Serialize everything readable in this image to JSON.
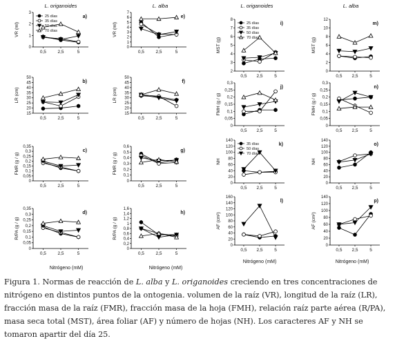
{
  "x_values": [
    "0,5",
    "2,5",
    "5"
  ],
  "headers": [
    {
      "prefix": "L. ",
      "name": "origanoides"
    },
    {
      "prefix": "L. ",
      "name": "alba"
    },
    {
      "prefix": "L. ",
      "name": "origanoides"
    },
    {
      "prefix": "L. ",
      "name": "alba"
    }
  ],
  "xlabels": [
    "Nitrógeno (mM)",
    "Nitrógeno (mM)",
    "Nitrógeno (mM)",
    "Nitrógeno (mM)"
  ],
  "caption": {
    "p1": "Figura 1. Normas de reacción de ",
    "e1": "L. alba",
    "p2": " y ",
    "e2": "L. origanoides",
    "p3": " creciendo en tres concentraciones de nitrógeno en distintos puntos de la ontogenia. volumen de la raíz (VR), longitud de la raíz (LR), fracción masa de la raíz (FMR), fracción masa de la hoja (FMH), relación raíz parte aérea (R/PA), masa seca total (MST), área foliar (AF) y número de hojas (NH). Los caracteres AF y NH se tomaron apartir del día 25."
  },
  "chart_data": [
    {
      "id": "a",
      "type": "line",
      "ylabel": "VR (ml)",
      "ylim": [
        0,
        3
      ],
      "yticks": [
        0,
        1,
        2,
        3
      ],
      "legend": true,
      "series": [
        {
          "name": "25 días",
          "marker": "filled-circle",
          "values": [
            0.9,
            0.6,
            0.4
          ]
        },
        {
          "name": "35 días",
          "marker": "open-circle",
          "values": [
            0.85,
            0.7,
            0.45
          ]
        },
        {
          "name": "50 días",
          "marker": "filled-triangle-down",
          "values": [
            0.85,
            0.65,
            0.95
          ]
        },
        {
          "name": "70 días",
          "marker": "open-triangle-up",
          "values": [
            1.7,
            2.0,
            1.3
          ]
        }
      ]
    },
    {
      "id": "e",
      "type": "line",
      "ylabel": "VR (ml)",
      "ylim": [
        0,
        7
      ],
      "yticks": [
        0,
        1,
        2,
        3,
        4,
        5,
        6,
        7
      ],
      "series": [
        {
          "name": "25 días",
          "marker": "filled-circle",
          "values": [
            5.0,
            2.0,
            2.6
          ]
        },
        {
          "name": "35 días",
          "marker": "open-circle",
          "values": [
            4.6,
            2.6,
            2.5
          ]
        },
        {
          "name": "50 días",
          "marker": "filled-triangle-down",
          "values": [
            3.7,
            2.5,
            3.1
          ]
        },
        {
          "name": "70 días",
          "marker": "open-triangle-up",
          "values": [
            5.7,
            5.7,
            6.0
          ]
        }
      ]
    },
    {
      "id": "b",
      "type": "line",
      "ylabel": "LR (cm)",
      "ylim": [
        15,
        50
      ],
      "yticks": [
        15,
        20,
        25,
        30,
        35,
        40,
        45,
        50
      ],
      "series": [
        {
          "name": "25 días",
          "marker": "filled-circle",
          "values": [
            19.5,
            20,
            22
          ]
        },
        {
          "name": "35 días",
          "marker": "open-circle",
          "values": [
            26,
            22,
            31
          ]
        },
        {
          "name": "50 días",
          "marker": "filled-triangle-down",
          "values": [
            26,
            25.5,
            33
          ]
        },
        {
          "name": "70 días",
          "marker": "open-triangle-up",
          "values": [
            30,
            34,
            38.5
          ]
        }
      ]
    },
    {
      "id": "f",
      "type": "line",
      "ylabel": "LR (cm)",
      "ylim": [
        15,
        50
      ],
      "yticks": [
        15,
        20,
        25,
        30,
        35,
        40,
        45,
        50
      ],
      "series": [
        {
          "name": "25 días",
          "marker": "filled-circle",
          "values": [
            32,
            31,
            28
          ]
        },
        {
          "name": "35 días",
          "marker": "open-circle",
          "values": [
            33,
            31.5,
            22
          ]
        },
        {
          "name": "50 días",
          "marker": "filled-triangle-down",
          "values": [
            33,
            30,
            27
          ]
        },
        {
          "name": "70 días",
          "marker": "open-triangle-up",
          "values": [
            33,
            38,
            34
          ]
        }
      ]
    },
    {
      "id": "c",
      "type": "line",
      "ylabel": "FMR (g / g)",
      "ylim": [
        0,
        0.35
      ],
      "yticks": [
        0,
        0.05,
        0.1,
        0.15,
        0.2,
        0.25,
        0.3,
        0.35
      ],
      "series": [
        {
          "name": "25 días",
          "marker": "filled-circle",
          "values": [
            0.19,
            0.13,
            0.1
          ]
        },
        {
          "name": "35 días",
          "marker": "open-circle",
          "values": [
            0.18,
            0.14,
            0.1
          ]
        },
        {
          "name": "50 días",
          "marker": "filled-triangle-down",
          "values": [
            0.2,
            0.15,
            0.16
          ]
        },
        {
          "name": "70 días",
          "marker": "open-triangle-up",
          "values": [
            0.22,
            0.24,
            0.23
          ]
        }
      ]
    },
    {
      "id": "g",
      "type": "line",
      "ylabel": "FMR (g / g)",
      "ylim": [
        0,
        0.6
      ],
      "yticks": [
        0,
        0.1,
        0.2,
        0.3,
        0.4,
        0.5,
        0.6
      ],
      "series": [
        {
          "name": "25 días",
          "marker": "filled-circle",
          "values": [
            0.47,
            0.31,
            0.37
          ]
        },
        {
          "name": "35 días",
          "marker": "open-circle",
          "values": [
            0.44,
            0.3,
            0.32
          ]
        },
        {
          "name": "50 días",
          "marker": "filled-triangle-down",
          "values": [
            0.4,
            0.35,
            0.36
          ]
        },
        {
          "name": "70 días",
          "marker": "open-triangle-up",
          "values": [
            0.32,
            0.37,
            0.33
          ]
        }
      ]
    },
    {
      "id": "d",
      "type": "line",
      "ylabel": "R/PA (g / g)",
      "ylim": [
        0,
        0.35
      ],
      "yticks": [
        0,
        0.05,
        0.1,
        0.15,
        0.2,
        0.25,
        0.3,
        0.35
      ],
      "series": [
        {
          "name": "25 días",
          "marker": "filled-circle",
          "values": [
            0.19,
            0.13,
            0.1
          ]
        },
        {
          "name": "35 días",
          "marker": "open-circle",
          "values": [
            0.18,
            0.14,
            0.1
          ]
        },
        {
          "name": "50 días",
          "marker": "filled-triangle-down",
          "values": [
            0.2,
            0.15,
            0.16
          ]
        },
        {
          "name": "70 días",
          "marker": "open-triangle-up",
          "values": [
            0.22,
            0.24,
            0.23
          ]
        }
      ]
    },
    {
      "id": "h",
      "type": "line",
      "ylabel": "R/PA (g / g)",
      "ylim": [
        0,
        1.6
      ],
      "yticks": [
        0,
        0.2,
        0.4,
        0.6,
        0.8,
        1,
        1.2,
        1.4,
        1.6
      ],
      "series": [
        {
          "name": "25 días",
          "marker": "filled-circle",
          "values": [
            1.05,
            0.55,
            0.55
          ]
        },
        {
          "name": "35 días",
          "marker": "open-circle",
          "values": [
            0.8,
            0.6,
            0.5
          ]
        },
        {
          "name": "50 días",
          "marker": "filled-triangle-down",
          "values": [
            0.8,
            0.45,
            0.55
          ]
        },
        {
          "name": "70 días",
          "marker": "open-triangle-up",
          "values": [
            0.5,
            0.6,
            0.45
          ]
        }
      ]
    },
    {
      "id": "i",
      "type": "line",
      "ylabel": "MST (g)",
      "ylim": [
        2,
        8
      ],
      "yticks": [
        2,
        3,
        4,
        5,
        6,
        7,
        8
      ],
      "legend": true,
      "series": [
        {
          "name": "25 días",
          "marker": "filled-circle",
          "values": [
            2.9,
            3.4,
            3.5
          ]
        },
        {
          "name": "35 días",
          "marker": "open-circle",
          "values": [
            3.3,
            3.1,
            4.2
          ]
        },
        {
          "name": "50 días",
          "marker": "filled-triangle-down",
          "values": [
            3.5,
            3.6,
            4.1
          ]
        },
        {
          "name": "70 días",
          "marker": "open-triangle-up",
          "values": [
            4.4,
            5.9,
            4.1
          ]
        }
      ]
    },
    {
      "id": "m",
      "type": "line",
      "ylabel": "MST (g)",
      "ylim": [
        0,
        12
      ],
      "yticks": [
        0,
        2,
        4,
        6,
        8,
        10,
        12
      ],
      "series": [
        {
          "name": "25 días",
          "marker": "filled-circle",
          "values": [
            3.5,
            3.0,
            3.4
          ]
        },
        {
          "name": "35 días",
          "marker": "open-circle",
          "values": [
            3.5,
            3.3,
            3.1
          ]
        },
        {
          "name": "50 días",
          "marker": "filled-triangle-down",
          "values": [
            4.7,
            4.5,
            5.3
          ]
        },
        {
          "name": "70 días",
          "marker": "open-triangle-up",
          "values": [
            8.0,
            6.6,
            8.2
          ]
        }
      ]
    },
    {
      "id": "j",
      "type": "line",
      "ylabel": "FMH (g / g)",
      "ylim": [
        0,
        0.3
      ],
      "yticks": [
        0,
        0.05,
        0.1,
        0.15,
        0.2,
        0.25,
        0.3
      ],
      "series": [
        {
          "name": "25 días",
          "marker": "filled-circle",
          "values": [
            0.08,
            0.11,
            0.11
          ]
        },
        {
          "name": "35 días",
          "marker": "open-circle",
          "values": [
            0.1,
            0.1,
            0.24
          ]
        },
        {
          "name": "50 días",
          "marker": "filled-triangle-down",
          "values": [
            0.13,
            0.15,
            0.17
          ]
        },
        {
          "name": "70 días",
          "marker": "open-triangle-up",
          "values": [
            0.2,
            0.23,
            0.18
          ]
        }
      ]
    },
    {
      "id": "n",
      "type": "line",
      "ylabel": "FMH (g / g)",
      "ylim": [
        0,
        0.3
      ],
      "yticks": [
        0,
        0.05,
        0.1,
        0.15,
        0.2,
        0.25,
        0.3
      ],
      "series": [
        {
          "name": "25 días",
          "marker": "filled-circle",
          "values": [
            0.18,
            0.19,
            0.2
          ]
        },
        {
          "name": "35 días",
          "marker": "open-circle",
          "values": [
            0.19,
            0.14,
            0.09
          ]
        },
        {
          "name": "50 días",
          "marker": "filled-triangle-down",
          "values": [
            0.17,
            0.23,
            0.2
          ]
        },
        {
          "name": "70 días",
          "marker": "open-triangle-up",
          "values": [
            0.12,
            0.13,
            0.13
          ]
        }
      ]
    },
    {
      "id": "k",
      "type": "line",
      "ylabel": "NH",
      "ylim": [
        0,
        140
      ],
      "yticks": [
        0,
        20,
        40,
        60,
        80,
        100,
        120,
        140
      ],
      "legend": true,
      "series": [
        {
          "name": "35 días",
          "marker": "filled-circle",
          "values": [
            40,
            35,
            38
          ]
        },
        {
          "name": "50 días",
          "marker": "open-circle",
          "values": [
            27,
            35,
            35
          ]
        },
        {
          "name": "70 días",
          "marker": "filled-triangle-down",
          "values": [
            45,
            100,
            40
          ]
        }
      ]
    },
    {
      "id": "o",
      "type": "line",
      "ylabel": "NH",
      "ylim": [
        0,
        140
      ],
      "yticks": [
        0,
        20,
        40,
        60,
        80,
        100,
        120,
        140
      ],
      "series": [
        {
          "name": "35 días",
          "marker": "filled-circle",
          "values": [
            50,
            60,
            100
          ]
        },
        {
          "name": "50 días",
          "marker": "open-circle",
          "values": [
            70,
            90,
            95
          ]
        },
        {
          "name": "70 días",
          "marker": "filled-triangle-down",
          "values": [
            68,
            75,
            95
          ]
        }
      ]
    },
    {
      "id": "l",
      "type": "line",
      "ylabel": "AF (cm²)",
      "ylim": [
        0,
        160
      ],
      "yticks": [
        0,
        20,
        40,
        60,
        80,
        100,
        120,
        140,
        160
      ],
      "series": [
        {
          "name": "35 días",
          "marker": "filled-circle",
          "values": [
            35,
            25,
            30
          ]
        },
        {
          "name": "50 días",
          "marker": "open-circle",
          "values": [
            35,
            30,
            45
          ]
        },
        {
          "name": "70 días",
          "marker": "filled-triangle-down",
          "values": [
            70,
            130,
            25
          ]
        }
      ]
    },
    {
      "id": "p",
      "type": "line",
      "ylabel": "AF (cm²)",
      "ylim": [
        0,
        140
      ],
      "yticks": [
        0,
        20,
        40,
        60,
        80,
        100,
        120,
        140
      ],
      "series": [
        {
          "name": "35 días",
          "marker": "filled-circle",
          "values": [
            50,
            30,
            90
          ]
        },
        {
          "name": "50 días",
          "marker": "open-circle",
          "values": [
            60,
            75,
            85
          ]
        },
        {
          "name": "70 días",
          "marker": "filled-triangle-down",
          "values": [
            60,
            65,
            110
          ]
        }
      ]
    }
  ]
}
